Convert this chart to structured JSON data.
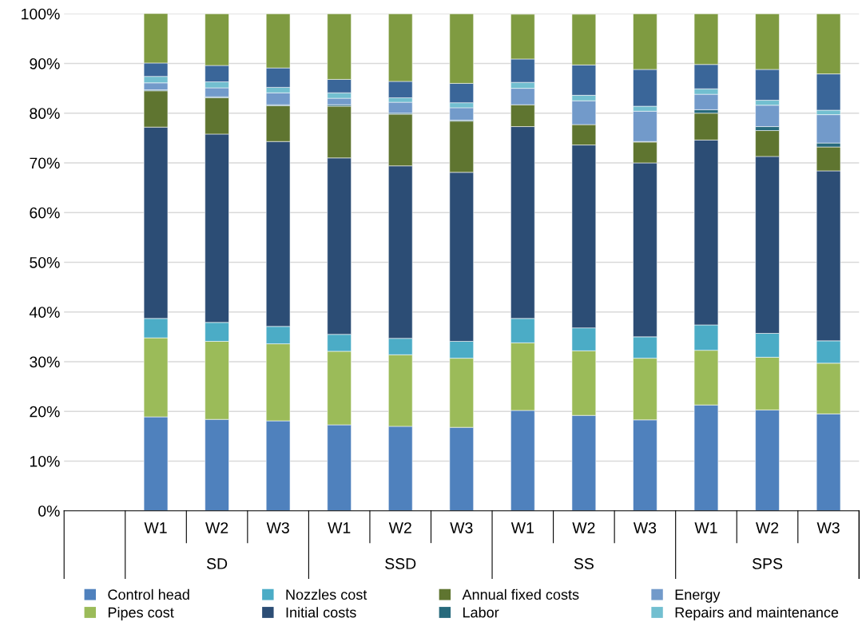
{
  "chart_data": {
    "type": "bar",
    "stacked": true,
    "categories": [
      null,
      "W1",
      "W2",
      "W3",
      "W1",
      "W2",
      "W3",
      "W1",
      "W2",
      "W3",
      "W1",
      "W2",
      "W3"
    ],
    "series": [
      {
        "name": "Control head",
        "color": "#4f81bd",
        "values": [
          null,
          18.9,
          18.4,
          18.1,
          17.3,
          17.0,
          16.8,
          20.2,
          19.2,
          18.3,
          21.3,
          20.3,
          19.5
        ]
      },
      {
        "name": "Pipes cost",
        "color": "#9bbb59",
        "values": [
          null,
          15.9,
          15.7,
          15.5,
          14.8,
          14.4,
          13.9,
          13.6,
          13.0,
          12.4,
          11.0,
          10.6,
          10.2
        ]
      },
      {
        "name": "Nozzles cost",
        "color": "#4bacc6",
        "values": [
          null,
          3.9,
          3.8,
          3.5,
          3.4,
          3.3,
          3.4,
          4.9,
          4.6,
          4.3,
          5.1,
          4.8,
          4.5
        ]
      },
      {
        "name": "Initial costs",
        "color": "#2c4d75",
        "values": [
          null,
          38.5,
          37.9,
          37.2,
          35.5,
          34.7,
          34.0,
          38.6,
          36.8,
          35.0,
          37.2,
          35.6,
          34.2
        ]
      },
      {
        "name": "Annual fixed costs",
        "color": "#5f7530",
        "values": [
          null,
          7.3,
          7.3,
          7.2,
          10.4,
          10.4,
          10.3,
          4.4,
          4.1,
          4.2,
          5.4,
          5.2,
          4.8
        ]
      },
      {
        "name": "Labor",
        "color": "#276a7c",
        "values": [
          null,
          0.2,
          0.2,
          0.2,
          0.3,
          0.2,
          0.2,
          null,
          null,
          0.1,
          0.7,
          0.8,
          0.8
        ]
      },
      {
        "name": "Energy",
        "color": "#729aca",
        "values": [
          null,
          1.4,
          1.8,
          2.4,
          1.3,
          2.2,
          2.5,
          3.3,
          4.8,
          6.1,
          3.1,
          4.3,
          5.7
        ]
      },
      {
        "name": "Repairs and maintenance",
        "color": "#72bfd0",
        "values": [
          null,
          1.3,
          1.2,
          1.1,
          1.1,
          0.9,
          1.0,
          1.2,
          1.1,
          1.0,
          1.1,
          1.0,
          0.9
        ]
      },
      {
        "color": "#3a6699",
        "values": [
          null,
          2.7,
          3.3,
          3.9,
          2.7,
          3.3,
          3.9,
          4.7,
          6.1,
          7.4,
          4.9,
          6.2,
          7.3
        ]
      },
      {
        "color": "#7f9b41",
        "values": [
          null,
          10.0,
          10.4,
          10.9,
          13.2,
          13.6,
          14.0,
          9.0,
          10.2,
          11.2,
          10.2,
          11.2,
          12.1
        ]
      }
    ],
    "ylim": [
      0,
      100
    ],
    "yticks": [
      {
        "value": 0,
        "label": "0%"
      },
      {
        "value": 10,
        "label": "10%"
      },
      {
        "value": 20,
        "label": "20%"
      },
      {
        "value": 30,
        "label": "30%"
      },
      {
        "value": 40,
        "label": "40%"
      },
      {
        "value": 50,
        "label": "50%"
      },
      {
        "value": 60,
        "label": "60%"
      },
      {
        "value": 70,
        "label": "70%"
      },
      {
        "value": 80,
        "label": "80%"
      },
      {
        "value": 90,
        "label": "90%"
      },
      {
        "value": 100,
        "label": "100%"
      }
    ],
    "annotations": [
      "SD",
      "SSD",
      "SS",
      "SPS"
    ],
    "grid": "y",
    "legend": "bottom"
  }
}
